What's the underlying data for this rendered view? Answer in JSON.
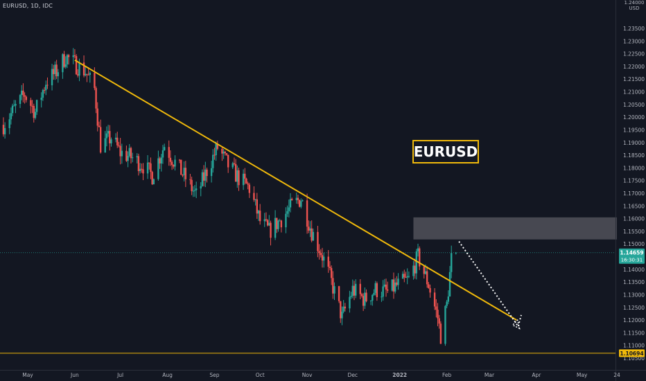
{
  "header": {
    "symbol_info": "EURUSD, 1D, IDC",
    "currency_top": "1.24000",
    "currency_bottom": "USD"
  },
  "price_badge": {
    "price": "1.14659",
    "countdown": "16:30:31",
    "color": "#26a69a"
  },
  "support_badge": {
    "price": "1.10694",
    "color": "#f0b90b"
  },
  "annotation": {
    "text": "EURUSD",
    "color": "#f0b90b"
  },
  "colors": {
    "background": "#131722",
    "up": "#26a69a",
    "down": "#ef5350",
    "trendline": "#f0b90b",
    "zone": "#5a5a62",
    "axis_text": "#b2b5be"
  },
  "chart_data": {
    "type": "candlestick",
    "ylim": [
      1.1035,
      1.2445
    ],
    "y_ticks": [
      "1.23500",
      "1.23000",
      "1.22500",
      "1.22000",
      "1.21500",
      "1.21000",
      "1.20500",
      "1.20000",
      "1.19500",
      "1.19000",
      "1.18500",
      "1.18000",
      "1.17500",
      "1.17000",
      "1.16500",
      "1.16000",
      "1.15500",
      "1.15000",
      "1.14500",
      "1.14000",
      "1.13500",
      "1.13000",
      "1.12500",
      "1.12000",
      "1.11500",
      "1.11000",
      "1.10500"
    ],
    "x_ticks": [
      {
        "label": "May",
        "date": "2021-05-01"
      },
      {
        "label": "Jun",
        "date": "2021-06-01"
      },
      {
        "label": "Jul",
        "date": "2021-07-01"
      },
      {
        "label": "Aug",
        "date": "2021-08-01"
      },
      {
        "label": "Sep",
        "date": "2021-09-01"
      },
      {
        "label": "Oct",
        "date": "2021-10-01"
      },
      {
        "label": "Nov",
        "date": "2021-11-01"
      },
      {
        "label": "Dec",
        "date": "2021-12-01"
      },
      {
        "label": "2022",
        "date": "2022-01-01"
      },
      {
        "label": "Feb",
        "date": "2022-02-01"
      },
      {
        "label": "Mar",
        "date": "2022-03-01"
      },
      {
        "label": "Apr",
        "date": "2022-04-01"
      },
      {
        "label": "May",
        "date": "2022-05-01"
      },
      {
        "label": "24",
        "date": "2022-05-24"
      }
    ],
    "close_path": [
      {
        "date": "2021-04-15",
        "value": 1.197
      },
      {
        "date": "2021-04-22",
        "value": 1.203
      },
      {
        "date": "2021-04-29",
        "value": 1.209
      },
      {
        "date": "2021-05-06",
        "value": 1.202
      },
      {
        "date": "2021-05-13",
        "value": 1.214
      },
      {
        "date": "2021-05-20",
        "value": 1.218
      },
      {
        "date": "2021-05-26",
        "value": 1.224
      },
      {
        "date": "2021-06-01",
        "value": 1.221
      },
      {
        "date": "2021-06-08",
        "value": 1.218
      },
      {
        "date": "2021-06-14",
        "value": 1.211
      },
      {
        "date": "2021-06-18",
        "value": 1.189
      },
      {
        "date": "2021-06-25",
        "value": 1.192
      },
      {
        "date": "2021-07-01",
        "value": 1.186
      },
      {
        "date": "2021-07-09",
        "value": 1.184
      },
      {
        "date": "2021-07-16",
        "value": 1.181
      },
      {
        "date": "2021-07-22",
        "value": 1.177
      },
      {
        "date": "2021-07-30",
        "value": 1.189
      },
      {
        "date": "2021-08-05",
        "value": 1.183
      },
      {
        "date": "2021-08-13",
        "value": 1.176
      },
      {
        "date": "2021-08-20",
        "value": 1.169
      },
      {
        "date": "2021-08-27",
        "value": 1.179
      },
      {
        "date": "2021-09-03",
        "value": 1.188
      },
      {
        "date": "2021-09-10",
        "value": 1.181
      },
      {
        "date": "2021-09-17",
        "value": 1.176
      },
      {
        "date": "2021-09-24",
        "value": 1.172
      },
      {
        "date": "2021-10-01",
        "value": 1.159
      },
      {
        "date": "2021-10-07",
        "value": 1.155
      },
      {
        "date": "2021-10-15",
        "value": 1.16
      },
      {
        "date": "2021-10-22",
        "value": 1.165
      },
      {
        "date": "2021-10-28",
        "value": 1.168
      },
      {
        "date": "2021-11-04",
        "value": 1.155
      },
      {
        "date": "2021-11-10",
        "value": 1.147
      },
      {
        "date": "2021-11-16",
        "value": 1.137
      },
      {
        "date": "2021-11-24",
        "value": 1.121
      },
      {
        "date": "2021-12-01",
        "value": 1.132
      },
      {
        "date": "2021-12-09",
        "value": 1.128
      },
      {
        "date": "2021-12-16",
        "value": 1.132
      },
      {
        "date": "2021-12-24",
        "value": 1.131
      },
      {
        "date": "2021-12-31",
        "value": 1.134
      },
      {
        "date": "2022-01-07",
        "value": 1.136
      },
      {
        "date": "2022-01-13",
        "value": 1.145
      },
      {
        "date": "2022-01-20",
        "value": 1.134
      },
      {
        "date": "2022-01-26",
        "value": 1.121
      },
      {
        "date": "2022-01-28",
        "value": 1.114
      },
      {
        "date": "2022-02-01",
        "value": 1.126
      },
      {
        "date": "2022-02-04",
        "value": 1.144
      },
      {
        "date": "2022-02-07",
        "value": 1.146
      }
    ],
    "trendline": [
      {
        "date": "2021-06-01",
        "value": 1.2225
      },
      {
        "date": "2022-03-19",
        "value": 1.12
      }
    ],
    "zone": {
      "start": "2022-01-10",
      "end": "2022-05-24",
      "low": 1.1518,
      "high": 1.1605
    },
    "projection": [
      {
        "date": "2022-02-09",
        "value": 1.151
      },
      {
        "date": "2022-03-20",
        "value": 1.1175
      },
      {
        "date": "2022-03-22",
        "value": 1.122
      }
    ],
    "current_price": 1.14659,
    "support_level": 1.10694
  }
}
